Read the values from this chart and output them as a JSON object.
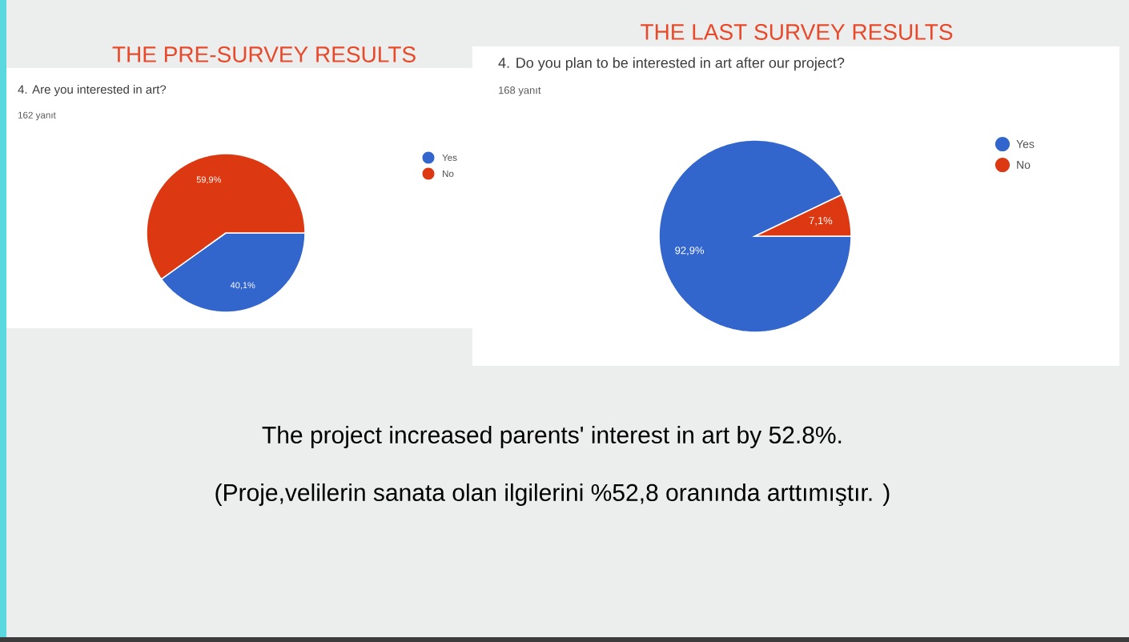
{
  "chart_data": [
    {
      "type": "pie",
      "title": "THE PRE-SURVEY RESULTS",
      "subtitle": "4. Are you interested in art?",
      "annotations": [
        "162 yanıt"
      ],
      "categories": [
        "Yes",
        "No"
      ],
      "values": [
        40.1,
        59.9
      ],
      "colors": [
        "#3366cc",
        "#dc3912"
      ],
      "value_labels": [
        "40,1%",
        "59,9%"
      ],
      "legend": "right"
    },
    {
      "type": "pie",
      "title": "THE LAST SURVEY RESULTS",
      "subtitle": "4. Do you plan to be interested in art after our project?",
      "annotations": [
        "168 yanıt"
      ],
      "categories": [
        "Yes",
        "No"
      ],
      "values": [
        92.9,
        7.1
      ],
      "colors": [
        "#3366cc",
        "#dc3912"
      ],
      "value_labels": [
        "92,9%",
        "7,1%"
      ],
      "legend": "right"
    },
    {
      "type": "other",
      "annotations": [
        "The project increased parents' interest in art by 52.8%.",
        "(Proje,velilerin sanata olan ilgilerini %52,8 oranında arttımıştır. )"
      ]
    }
  ]
}
